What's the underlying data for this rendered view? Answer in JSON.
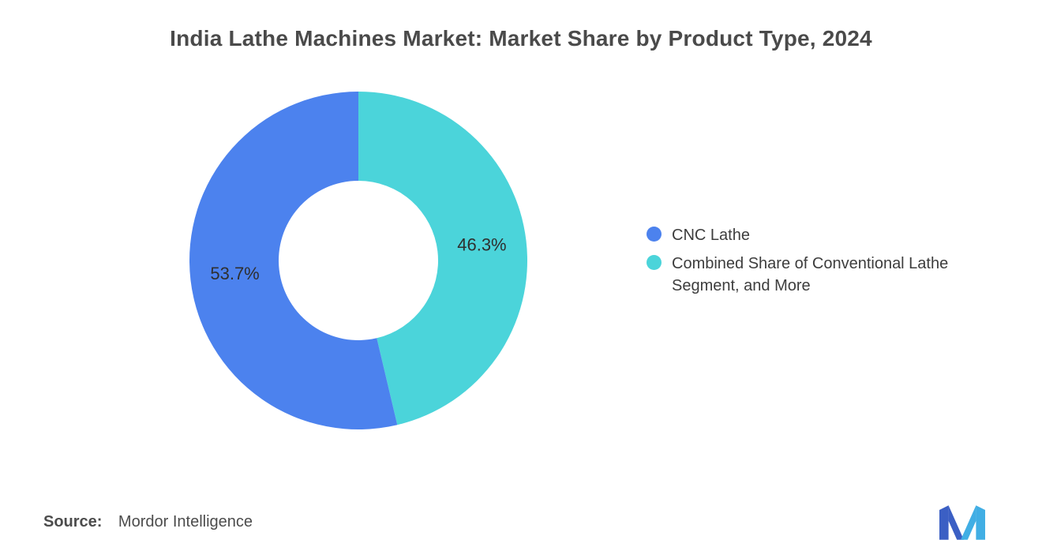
{
  "chart_data": {
    "type": "pie",
    "subtype": "donut",
    "title": "India Lathe Machines Market: Market Share by Product Type, 2024",
    "unit": "%",
    "slices": [
      {
        "label": "CNC Lathe",
        "value": 53.7,
        "display": "53.7%",
        "color": "#4C82EE"
      },
      {
        "label": "Combined Share of Conventional Lathe Segment, and More",
        "value": 46.3,
        "display": "46.3%",
        "color": "#4BD4DA"
      }
    ],
    "clockwise_order": [
      1,
      0
    ],
    "start_angle_deg": 0,
    "inner_radius_ratio": 0.47,
    "labels_inside": true,
    "legend_position": "right",
    "background": "#ffffff"
  },
  "footer": {
    "source_label": "Source:",
    "source_value": "Mordor Intelligence"
  },
  "logo": {
    "name": "mordor-intelligence-logo",
    "color_dark": "#3B5FC4",
    "color_light": "#41AEE4"
  }
}
